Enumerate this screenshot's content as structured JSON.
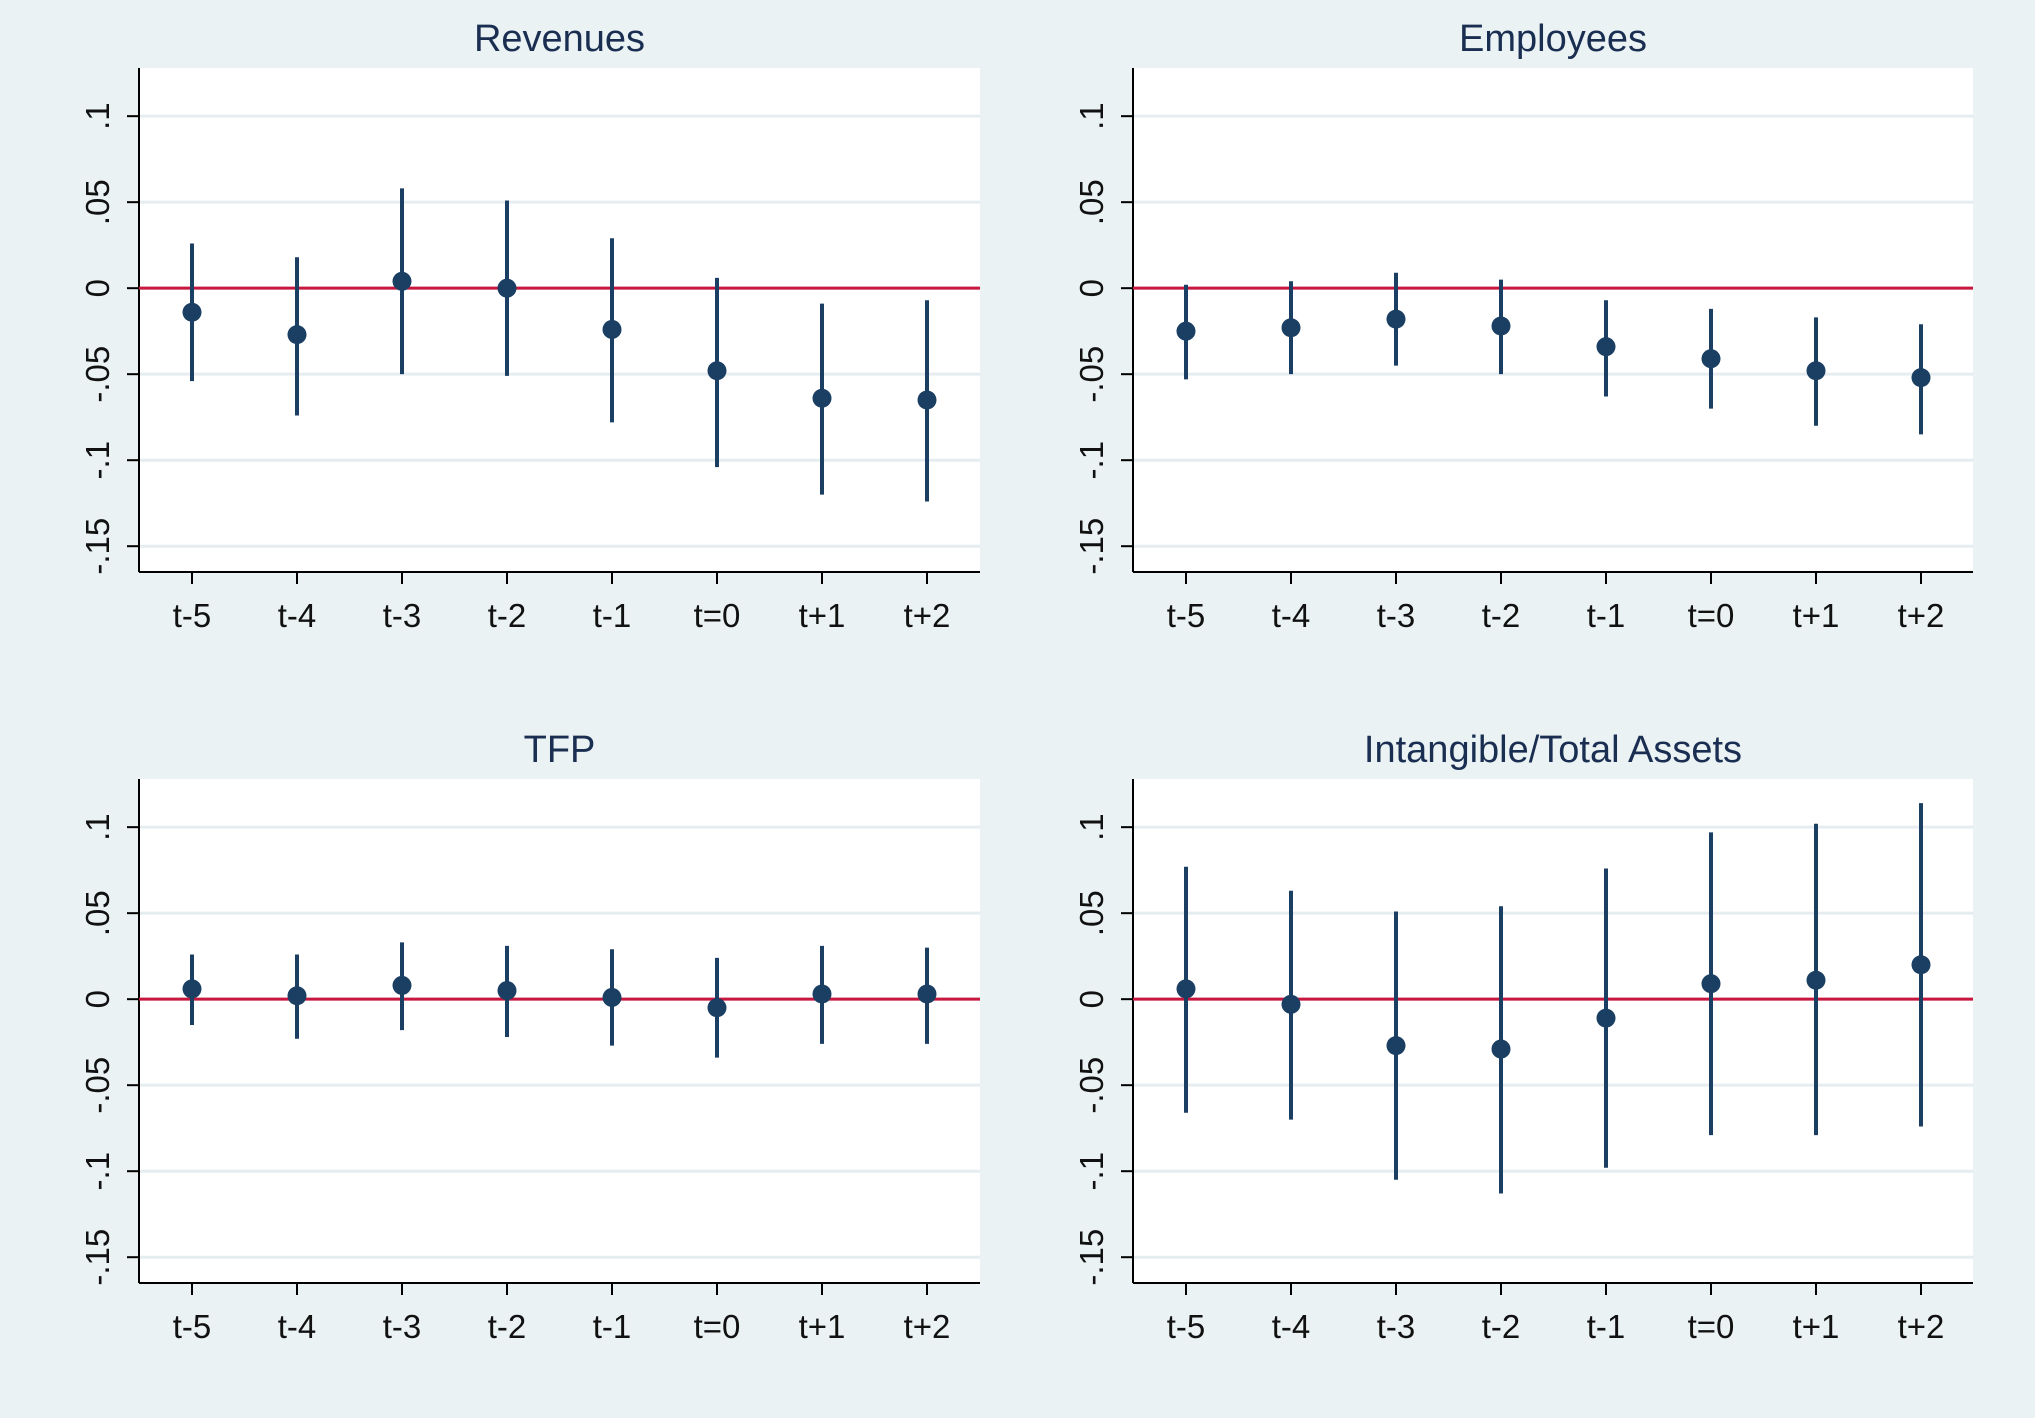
{
  "chart_data": [
    {
      "type": "scatter",
      "title": "Revenues",
      "xlabel": "",
      "ylabel": "",
      "categories": [
        "t-5",
        "t-4",
        "t-3",
        "t-2",
        "t-1",
        "t=0",
        "t+1",
        "t+2"
      ],
      "y_ticks": [
        "-.15",
        "-.1",
        "-.05",
        "0",
        ".05",
        ".1"
      ],
      "ylim": [
        -0.165,
        0.128
      ],
      "grid": true,
      "reference_line": 0,
      "points": [
        {
          "x": "t-5",
          "estimate": -0.014,
          "ci_low": -0.054,
          "ci_high": 0.026
        },
        {
          "x": "t-4",
          "estimate": -0.027,
          "ci_low": -0.074,
          "ci_high": 0.018
        },
        {
          "x": "t-3",
          "estimate": 0.004,
          "ci_low": -0.05,
          "ci_high": 0.058
        },
        {
          "x": "t-2",
          "estimate": 0.0,
          "ci_low": -0.051,
          "ci_high": 0.051
        },
        {
          "x": "t-1",
          "estimate": -0.024,
          "ci_low": -0.078,
          "ci_high": 0.029
        },
        {
          "x": "t=0",
          "estimate": -0.048,
          "ci_low": -0.104,
          "ci_high": 0.006
        },
        {
          "x": "t+1",
          "estimate": -0.064,
          "ci_low": -0.12,
          "ci_high": -0.009
        },
        {
          "x": "t+2",
          "estimate": -0.065,
          "ci_low": -0.124,
          "ci_high": -0.007
        }
      ]
    },
    {
      "type": "scatter",
      "title": "Employees",
      "xlabel": "",
      "ylabel": "",
      "categories": [
        "t-5",
        "t-4",
        "t-3",
        "t-2",
        "t-1",
        "t=0",
        "t+1",
        "t+2"
      ],
      "y_ticks": [
        "-.15",
        "-.1",
        "-.05",
        "0",
        ".05",
        ".1"
      ],
      "ylim": [
        -0.165,
        0.128
      ],
      "grid": true,
      "reference_line": 0,
      "points": [
        {
          "x": "t-5",
          "estimate": -0.025,
          "ci_low": -0.053,
          "ci_high": 0.002
        },
        {
          "x": "t-4",
          "estimate": -0.023,
          "ci_low": -0.05,
          "ci_high": 0.004
        },
        {
          "x": "t-3",
          "estimate": -0.018,
          "ci_low": -0.045,
          "ci_high": 0.009
        },
        {
          "x": "t-2",
          "estimate": -0.022,
          "ci_low": -0.05,
          "ci_high": 0.005
        },
        {
          "x": "t-1",
          "estimate": -0.034,
          "ci_low": -0.063,
          "ci_high": -0.007
        },
        {
          "x": "t=0",
          "estimate": -0.041,
          "ci_low": -0.07,
          "ci_high": -0.012
        },
        {
          "x": "t+1",
          "estimate": -0.048,
          "ci_low": -0.08,
          "ci_high": -0.017
        },
        {
          "x": "t+2",
          "estimate": -0.052,
          "ci_low": -0.085,
          "ci_high": -0.021
        }
      ]
    },
    {
      "type": "scatter",
      "title": "TFP",
      "xlabel": "",
      "ylabel": "",
      "categories": [
        "t-5",
        "t-4",
        "t-3",
        "t-2",
        "t-1",
        "t=0",
        "t+1",
        "t+2"
      ],
      "y_ticks": [
        "-.15",
        "-.1",
        "-.05",
        "0",
        ".05",
        ".1"
      ],
      "ylim": [
        -0.165,
        0.128
      ],
      "grid": true,
      "reference_line": 0,
      "points": [
        {
          "x": "t-5",
          "estimate": 0.006,
          "ci_low": -0.015,
          "ci_high": 0.026
        },
        {
          "x": "t-4",
          "estimate": 0.002,
          "ci_low": -0.023,
          "ci_high": 0.026
        },
        {
          "x": "t-3",
          "estimate": 0.008,
          "ci_low": -0.018,
          "ci_high": 0.033
        },
        {
          "x": "t-2",
          "estimate": 0.005,
          "ci_low": -0.022,
          "ci_high": 0.031
        },
        {
          "x": "t-1",
          "estimate": 0.001,
          "ci_low": -0.027,
          "ci_high": 0.029
        },
        {
          "x": "t=0",
          "estimate": -0.005,
          "ci_low": -0.034,
          "ci_high": 0.024
        },
        {
          "x": "t+1",
          "estimate": 0.003,
          "ci_low": -0.026,
          "ci_high": 0.031
        },
        {
          "x": "t+2",
          "estimate": 0.003,
          "ci_low": -0.026,
          "ci_high": 0.03
        }
      ]
    },
    {
      "type": "scatter",
      "title": "Intangible/Total Assets",
      "xlabel": "",
      "ylabel": "",
      "categories": [
        "t-5",
        "t-4",
        "t-3",
        "t-2",
        "t-1",
        "t=0",
        "t+1",
        "t+2"
      ],
      "y_ticks": [
        "-.15",
        "-.1",
        "-.05",
        "0",
        ".05",
        ".1"
      ],
      "ylim": [
        -0.165,
        0.128
      ],
      "grid": true,
      "reference_line": 0,
      "points": [
        {
          "x": "t-5",
          "estimate": 0.006,
          "ci_low": -0.066,
          "ci_high": 0.077
        },
        {
          "x": "t-4",
          "estimate": -0.003,
          "ci_low": -0.07,
          "ci_high": 0.063
        },
        {
          "x": "t-3",
          "estimate": -0.027,
          "ci_low": -0.105,
          "ci_high": 0.051
        },
        {
          "x": "t-2",
          "estimate": -0.029,
          "ci_low": -0.113,
          "ci_high": 0.054
        },
        {
          "x": "t-1",
          "estimate": -0.011,
          "ci_low": -0.098,
          "ci_high": 0.076
        },
        {
          "x": "t=0",
          "estimate": 0.009,
          "ci_low": -0.079,
          "ci_high": 0.097
        },
        {
          "x": "t+1",
          "estimate": 0.011,
          "ci_low": -0.079,
          "ci_high": 0.102
        },
        {
          "x": "t+2",
          "estimate": 0.02,
          "ci_low": -0.074,
          "ci_high": 0.114
        }
      ]
    }
  ],
  "colors": {
    "background": "#eaf2f3",
    "plot_area": "#ffffff",
    "grid": "#e6edf0",
    "axis": "#000000",
    "marker": "#1b3f63",
    "reference_line": "#c8173f",
    "title": "#1a2e52"
  }
}
